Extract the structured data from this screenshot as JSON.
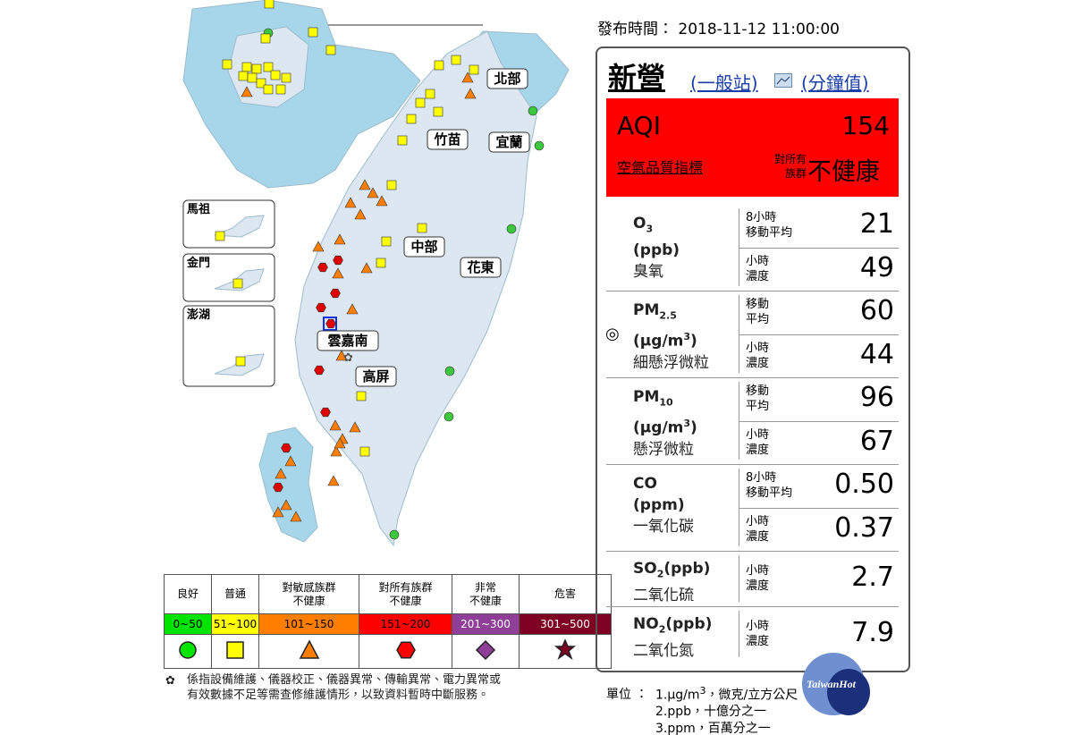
{
  "map": {
    "regions": [
      "北部",
      "竹苗",
      "宜蘭",
      "中部",
      "花東",
      "雲嘉南",
      "高屏"
    ],
    "insets": [
      "馬祖",
      "金門",
      "澎湖"
    ]
  },
  "legend": {
    "headers": [
      [
        "良好"
      ],
      [
        "普通"
      ],
      [
        "對敏感族群",
        "不健康"
      ],
      [
        "對所有族群",
        "不健康"
      ],
      [
        "非常",
        "不健康"
      ],
      [
        "危害"
      ]
    ],
    "ranges": [
      "0~50",
      "51~100",
      "101~150",
      "151~200",
      "201~300",
      "301~500"
    ],
    "colors": [
      "#00e400",
      "#ffff00",
      "#ff7e00",
      "#ff0000",
      "#8f3f97",
      "#7e0023"
    ]
  },
  "note": [
    "係指設備維護、儀器校正、儀器異常、傳輸異常、電力異常或",
    "有效數據不足等需查修維護情形，以致資料暫時中斷服務。"
  ],
  "publish": {
    "label": "發布時間：",
    "time": "2018-11-12 11:00:00"
  },
  "station": {
    "name": "新營",
    "type": "(一般站)",
    "minute": "(分鐘值)"
  },
  "aqi": {
    "label": "AQI",
    "value": "154",
    "caption": "空氣品質指標",
    "group": [
      "對所有",
      "族群"
    ],
    "status": "不健康"
  },
  "pollutants": [
    {
      "name": [
        "O",
        "3"
      ],
      "unit": [
        "(ppb)"
      ],
      "label": "臭氧",
      "rows": [
        {
          "period": [
            "8小時",
            "移動平均"
          ],
          "value": "21"
        },
        {
          "period": [
            "小時",
            "濃度"
          ],
          "value": "49"
        }
      ]
    },
    {
      "mark": "◎",
      "name": [
        "PM",
        "2.5"
      ],
      "unit": [
        "(μg/m",
        "3",
        ")"
      ],
      "label": "細懸浮微粒",
      "rows": [
        {
          "period": [
            "移動",
            "平均"
          ],
          "value": "60"
        },
        {
          "period": [
            "小時",
            "濃度"
          ],
          "value": "44"
        }
      ]
    },
    {
      "name": [
        "PM",
        "10"
      ],
      "unit": [
        "(μg/m",
        "3",
        ")"
      ],
      "label": "懸浮微粒",
      "rows": [
        {
          "period": [
            "移動",
            "平均"
          ],
          "value": "96"
        },
        {
          "period": [
            "小時",
            "濃度"
          ],
          "value": "67"
        }
      ]
    },
    {
      "name": [
        "CO"
      ],
      "unit": [
        "(ppm)"
      ],
      "label": "一氧化碳",
      "rows": [
        {
          "period": [
            "8小時",
            "移動平均"
          ],
          "value": "0.50"
        },
        {
          "period": [
            "小時",
            "濃度"
          ],
          "value": "0.37"
        }
      ]
    },
    {
      "name": [
        "SO",
        "2",
        "(ppb)"
      ],
      "label": "二氧化硫",
      "rows": [
        {
          "period": [
            "小時",
            "濃度"
          ],
          "value": "2.7"
        }
      ]
    },
    {
      "name": [
        "NO",
        "2",
        "(ppb)"
      ],
      "label": "二氧化氮",
      "rows": [
        {
          "period": [
            "小時",
            "濃度"
          ],
          "value": "7.9"
        }
      ]
    }
  ],
  "units": {
    "label": "單位 ：",
    "lines": [
      [
        "1.μg/m",
        "3",
        "，微克/立方公尺"
      ],
      [
        "2.ppb，十億分之一"
      ],
      [
        "3.ppm，百萬分之一"
      ]
    ]
  },
  "watermark": "TaiwanHot"
}
